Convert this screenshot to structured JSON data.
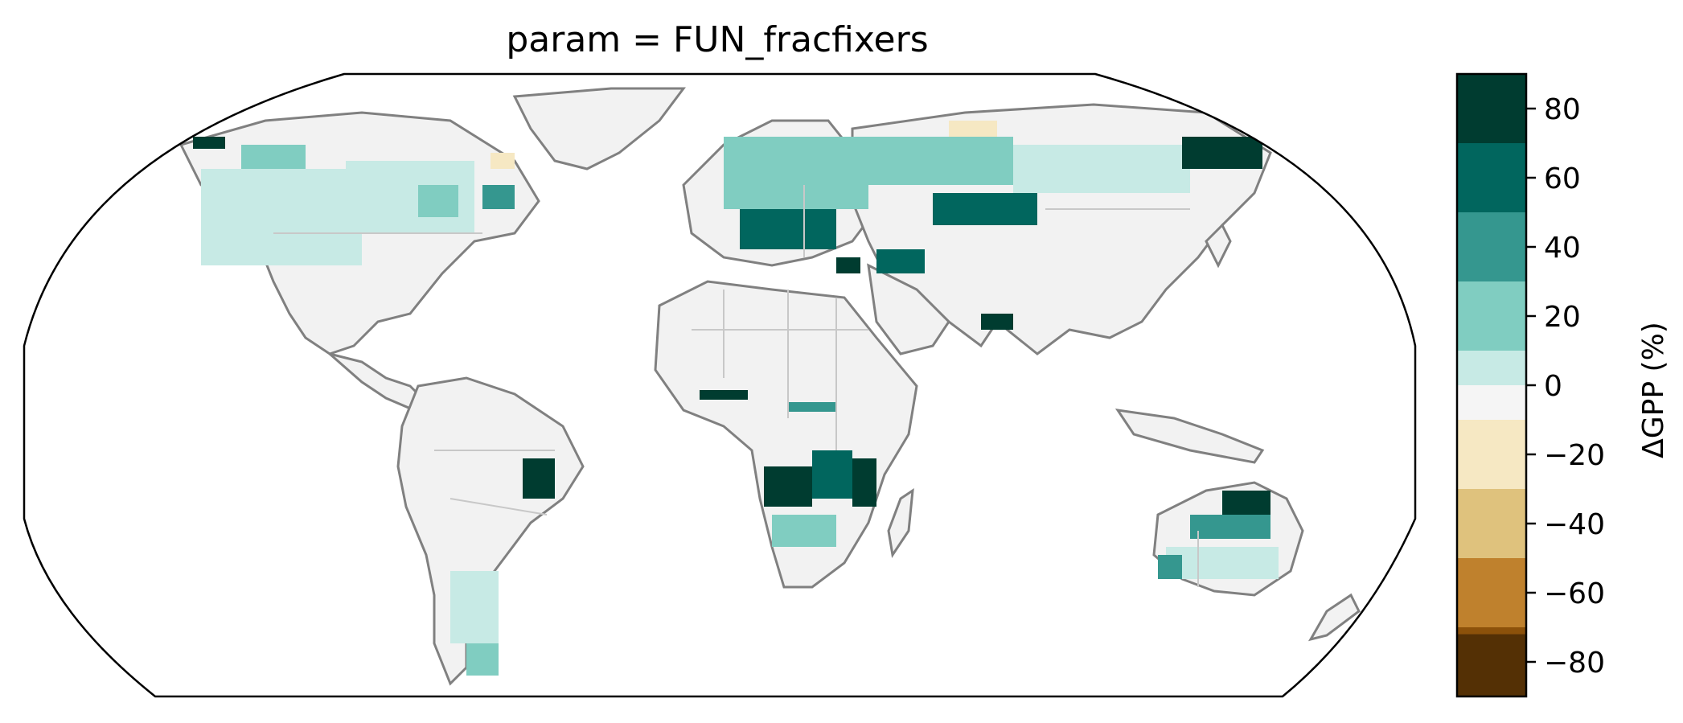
{
  "title": "param = FUN_fracfixers",
  "colorbar": {
    "label": "ΔGPP (%)",
    "ticks": [
      "80",
      "60",
      "40",
      "20",
      "0",
      "−20",
      "−40",
      "−60",
      "−80"
    ],
    "levels": [
      {
        "range": "70 to 90",
        "color": "#003c30"
      },
      {
        "range": "50 to 70",
        "color": "#01665e"
      },
      {
        "range": "30 to 50",
        "color": "#35978f"
      },
      {
        "range": "10 to 30",
        "color": "#80cdc1"
      },
      {
        "range": "-10 to 10 (upper)",
        "color": "#c7eae5"
      },
      {
        "range": "-10 to 10",
        "color": "#f5f5f5"
      },
      {
        "range": "-30 to -10",
        "color": "#f6e8c3"
      },
      {
        "range": "-50 to -30",
        "color": "#dfc27d"
      },
      {
        "range": "-70 to -50",
        "color": "#bf812d"
      },
      {
        "range": "-90 to -70",
        "color": "#8c510a"
      },
      {
        "range": "< -70",
        "color": "#543005"
      }
    ]
  },
  "map": {
    "projection": "Robinson",
    "coastline_color": "#808080",
    "border_color": "#c8c8c8"
  }
}
